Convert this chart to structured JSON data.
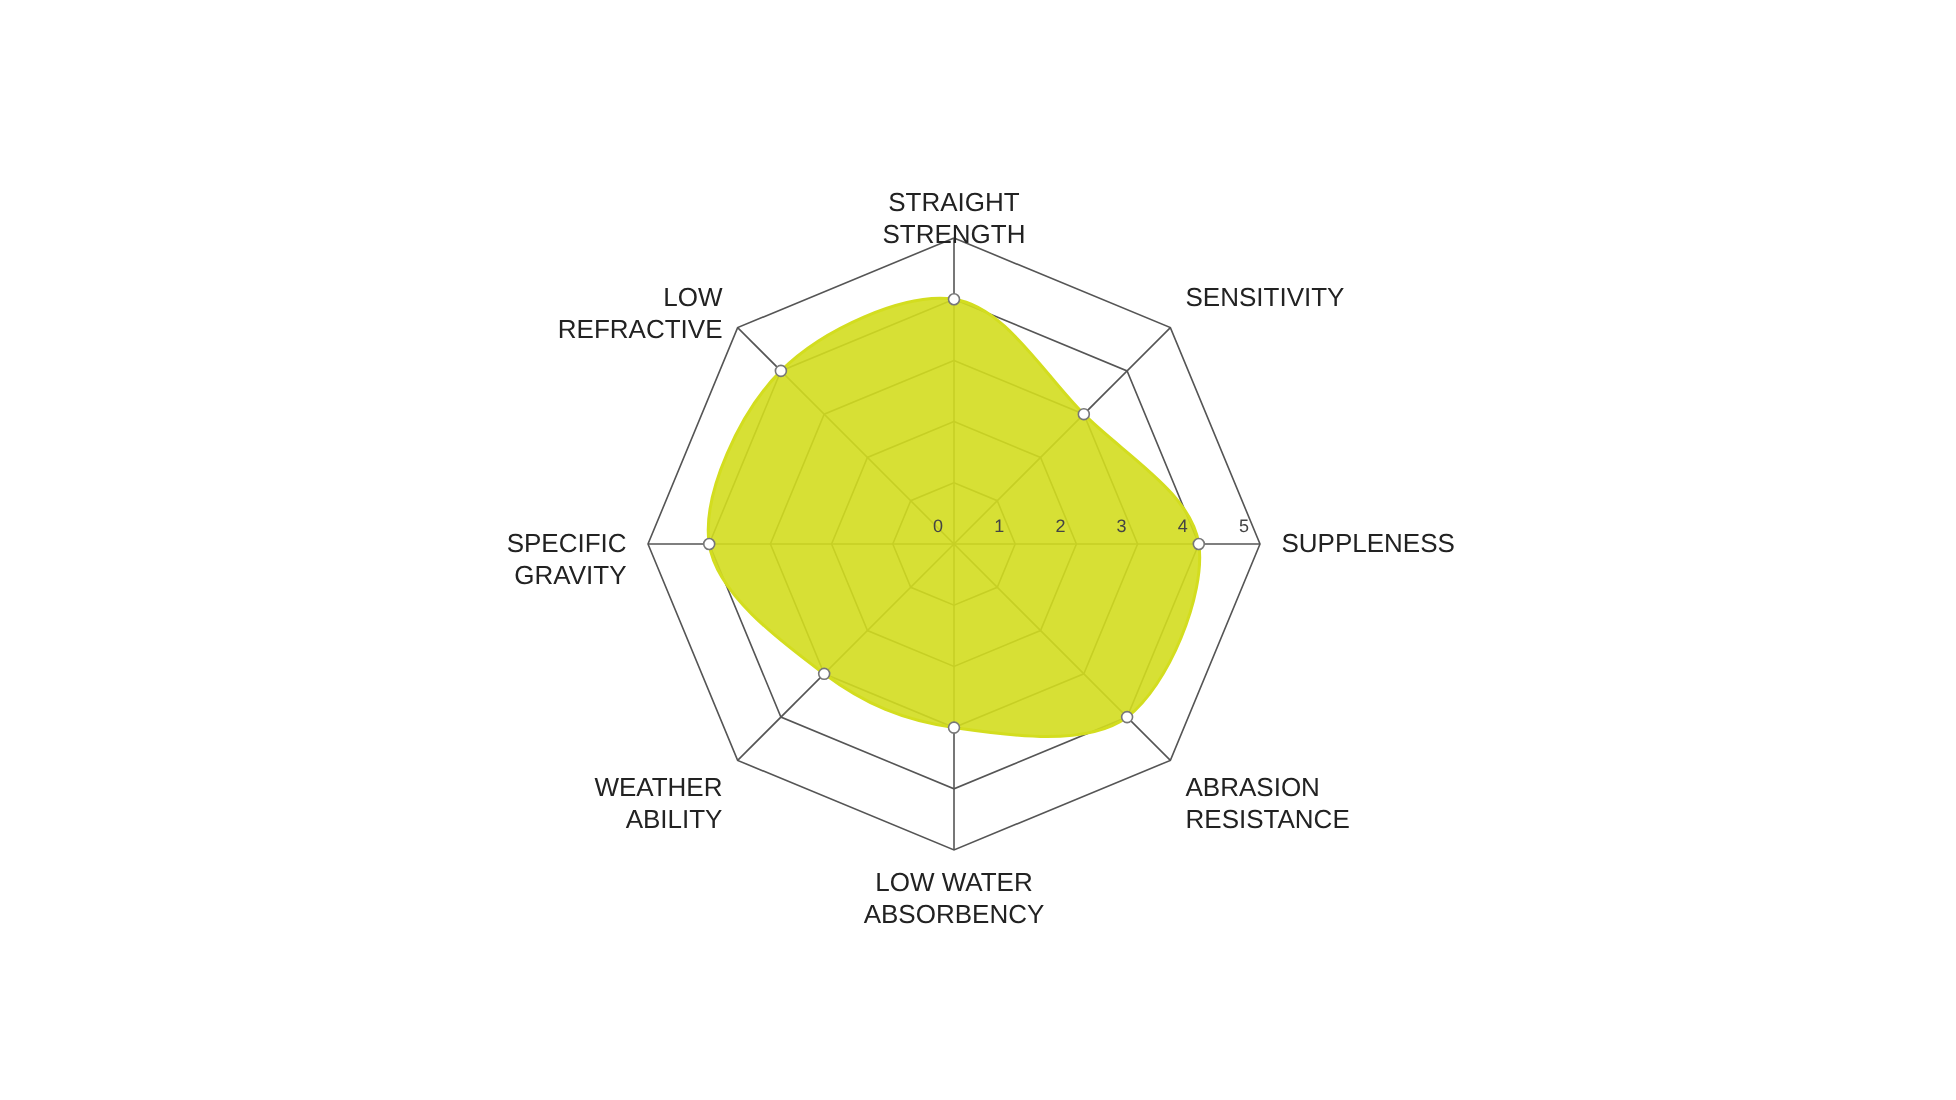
{
  "chart_data": {
    "type": "radar",
    "categories": [
      "STRAIGHT STRENGTH",
      "SENSITIVITY",
      "SUPPLENESS",
      "ABRASION RESISTANCE",
      "LOW WATER ABSORBENCY",
      "WEATHER ABILITY",
      "SPECIFIC GRAVITY",
      "LOW REFRACTIVE"
    ],
    "series": [
      {
        "color": "#d3dd1f",
        "values": [
          4,
          3,
          4,
          4,
          3,
          3,
          4,
          4
        ]
      }
    ],
    "ylim": [
      0,
      5
    ],
    "yticks": [
      0,
      1,
      2,
      3,
      4,
      5
    ],
    "grid": true,
    "marker": "circle"
  }
}
